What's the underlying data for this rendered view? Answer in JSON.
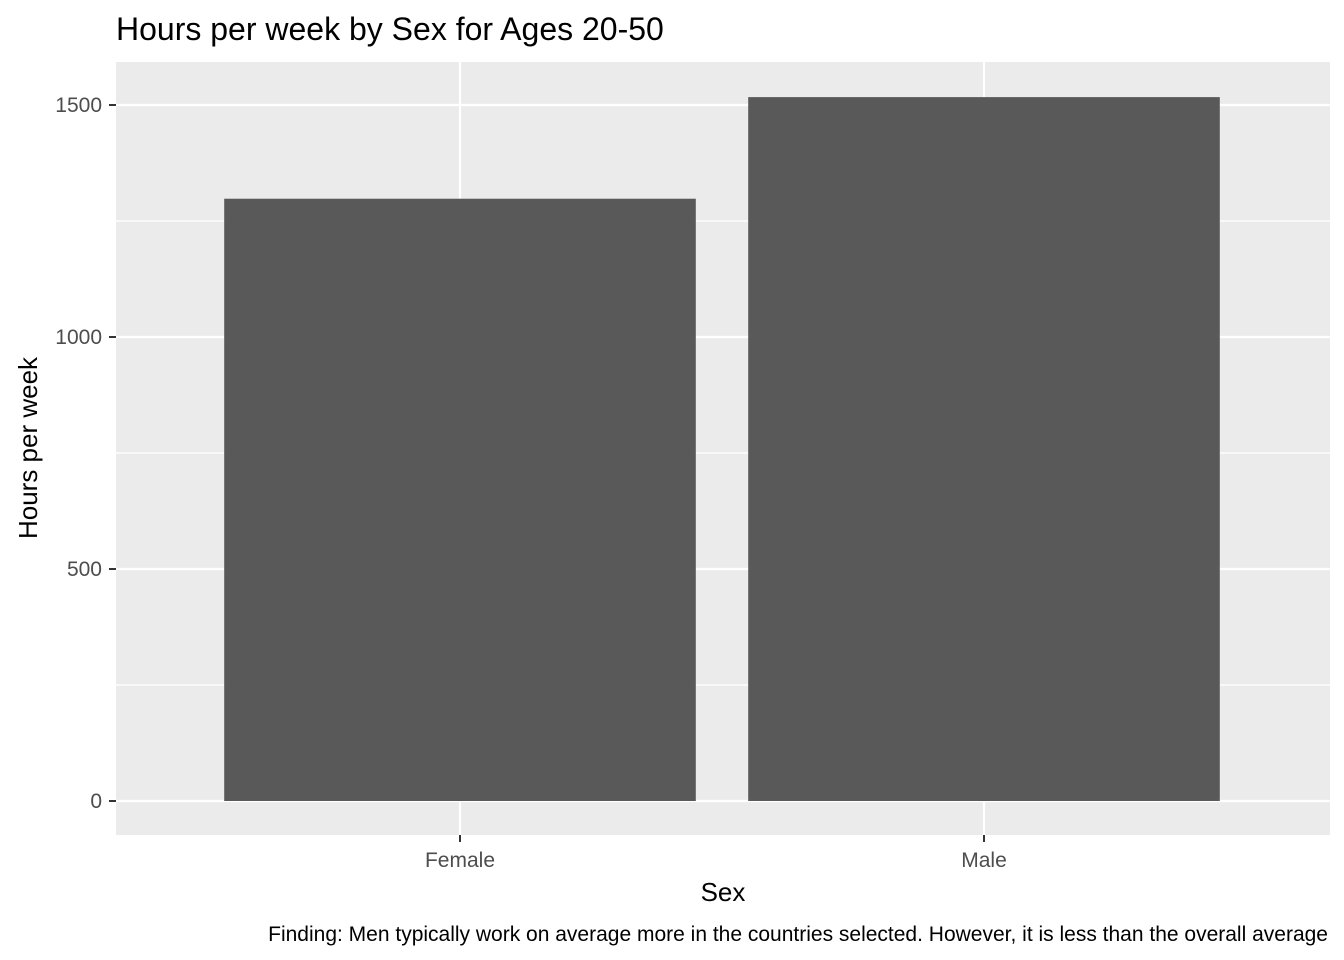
{
  "chart_data": {
    "type": "bar",
    "title": "Hours per week by Sex for Ages 20-50",
    "xlabel": "Sex",
    "ylabel": "Hours per week",
    "categories": [
      "Female",
      "Male"
    ],
    "values": [
      1298,
      1517
    ],
    "ylim": [
      0,
      1590
    ],
    "yticks": [
      0,
      500,
      1000,
      1500
    ],
    "y_minor_ticks": [
      250,
      750,
      1250
    ],
    "grid": true,
    "caption": "Finding: Men typically work on average more in the countries selected. However, it is less than the overall average",
    "colors": {
      "bar": "#595959",
      "panel": "#ebebeb",
      "grid": "#ffffff"
    }
  }
}
